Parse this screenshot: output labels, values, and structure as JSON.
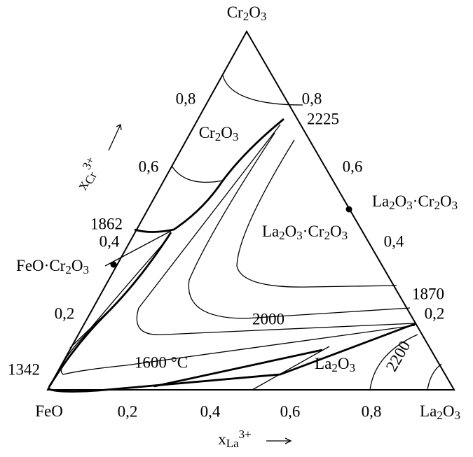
{
  "vertices": {
    "top": [
      {
        "text": "Cr"
      },
      {
        "text": "2",
        "pos": "sub"
      },
      {
        "text": "O"
      },
      {
        "text": "3",
        "pos": "sub"
      }
    ],
    "left": [
      {
        "text": "FeO"
      }
    ],
    "right": [
      {
        "text": "La"
      },
      {
        "text": "2",
        "pos": "sub"
      },
      {
        "text": "O"
      },
      {
        "text": "3",
        "pos": "sub"
      }
    ]
  },
  "bottom_axis_ticks": [
    "0,2",
    "0,4",
    "0,6",
    "0,8"
  ],
  "left_axis_ticks": [
    "0,2",
    "0,4",
    "0,6",
    "0,8"
  ],
  "right_axis_ticks": [
    "0,2",
    "0,4",
    "0,6",
    "0,8"
  ],
  "axis_labels": {
    "bottom": [
      {
        "text": "x"
      },
      {
        "text": "La",
        "pos": "sub"
      },
      {
        "text": "3+",
        "pos": "sup"
      }
    ],
    "left": [
      {
        "text": "x"
      },
      {
        "text": "Cr",
        "pos": "sub"
      },
      {
        "text": "3+",
        "pos": "sup"
      }
    ]
  },
  "compounds": [
    [
      {
        "text": "FeO·Cr"
      },
      {
        "text": "2",
        "pos": "sub"
      },
      {
        "text": "O"
      },
      {
        "text": "3",
        "pos": "sub"
      }
    ],
    [
      {
        "text": "La"
      },
      {
        "text": "2",
        "pos": "sub"
      },
      {
        "text": "O"
      },
      {
        "text": "3",
        "pos": "sub"
      },
      {
        "text": "·Cr"
      },
      {
        "text": "2",
        "pos": "sub"
      },
      {
        "text": "O"
      },
      {
        "text": "3",
        "pos": "sub"
      }
    ]
  ],
  "field_labels": [
    [
      {
        "text": "Cr"
      },
      {
        "text": "2",
        "pos": "sub"
      },
      {
        "text": "O"
      },
      {
        "text": "3",
        "pos": "sub"
      }
    ],
    [
      {
        "text": "La"
      },
      {
        "text": "2",
        "pos": "sub"
      },
      {
        "text": "O"
      },
      {
        "text": "3",
        "pos": "sub"
      },
      {
        "text": "·Cr"
      },
      {
        "text": "2",
        "pos": "sub"
      },
      {
        "text": "O"
      },
      {
        "text": "3",
        "pos": "sub"
      }
    ],
    [
      {
        "text": "La"
      },
      {
        "text": "2",
        "pos": "sub"
      },
      {
        "text": "O"
      },
      {
        "text": "3",
        "pos": "sub"
      }
    ]
  ],
  "temperatures": [
    "2225",
    "1862",
    "1870",
    "1342",
    "2000",
    "1600 °C",
    "2200"
  ]
}
